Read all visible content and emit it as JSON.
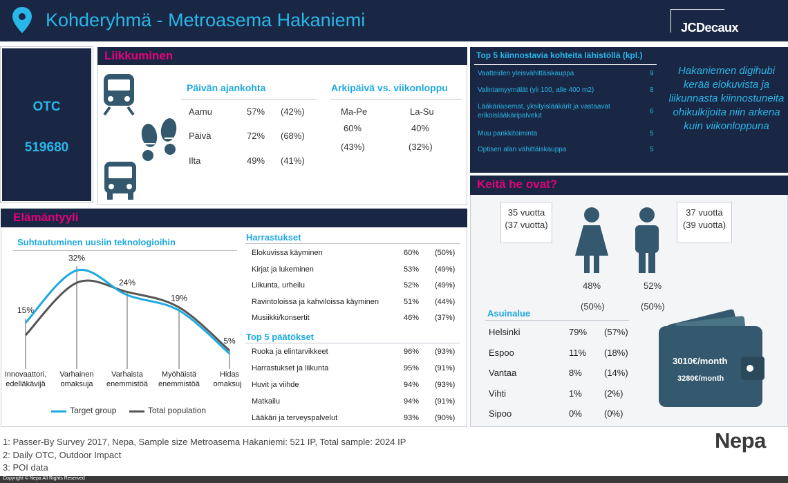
{
  "header": {
    "title": "Kohderyhmä - Metroasema Hakaniemi",
    "brand": "JCDecaux"
  },
  "otc": {
    "label": "OTC",
    "value": "519680"
  },
  "liikkuminen": {
    "title": "Liikkuminen",
    "time_heading": "Päivän ajankohta",
    "time_rows": [
      {
        "label": "Aamu",
        "pct": "57%",
        "ref": "(42%)"
      },
      {
        "label": "Päivä",
        "pct": "72%",
        "ref": "(68%)"
      },
      {
        "label": "Ilta",
        "pct": "49%",
        "ref": "(41%)"
      }
    ],
    "week_heading": "Arkipäivä vs. viikonloppu",
    "week": {
      "weekday_label": "Ma-Pe",
      "weekday_pct": "60%",
      "weekday_ref": "(43%)",
      "weekend_label": "La-Su",
      "weekend_pct": "40%",
      "weekend_ref": "(32%)"
    }
  },
  "poi": {
    "title": "Top 5 kiinnostavia kohteita lähistöllä (kpl.)",
    "items": [
      {
        "label": "Vaatteiden yleisvähittäiskauppa",
        "count": "9"
      },
      {
        "label": "Valintamyymälät (yli 100, alle 400 m2)",
        "count": "8"
      },
      {
        "label": "Lääkäriasemat, yksityislääkärit ja vastaavat",
        "label2": "erikoislääkäripalvelut",
        "count": "6"
      },
      {
        "label": "Muu pankkitoiminta",
        "count": "5"
      },
      {
        "label": "Optisen alan vähittäiskauppa",
        "count": "5"
      }
    ],
    "quote": "Hakaniemen digihubi kerää elokuvista ja liikunnasta kiinnostuneita ohikulkijoita niin arkena kuin viikonloppuna"
  },
  "lifestyle": {
    "title": "Elämäntyyli",
    "chart_title": "Suhtautuminen uusiin teknologioihin",
    "legend_target": "Target group",
    "legend_total": "Total population",
    "hobbies_heading": "Harrastukset",
    "hobbies": [
      {
        "label": "Elokuvissa käyminen",
        "pct": "60%",
        "ref": "(50%)"
      },
      {
        "label": "Kirjat ja lukeminen",
        "pct": "53%",
        "ref": "(49%)"
      },
      {
        "label": "Liikunta, urheilu",
        "pct": "52%",
        "ref": "(49%)"
      },
      {
        "label": "Ravintoloissa ja kahviloissa käyminen",
        "pct": "51%",
        "ref": "(44%)"
      },
      {
        "label": "Musiikki/konsertit",
        "pct": "46%",
        "ref": "(37%)"
      }
    ],
    "decisions_heading": "Top 5 päätökset",
    "decisions": [
      {
        "label": "Ruoka ja elintarvikkeet",
        "pct": "96%",
        "ref": "(93%)"
      },
      {
        "label": "Harrastukset ja liikunta",
        "pct": "95%",
        "ref": "(91%)"
      },
      {
        "label": "Huvit ja viihde",
        "pct": "94%",
        "ref": "(93%)"
      },
      {
        "label": "Matkailu",
        "pct": "94%",
        "ref": "(91%)"
      },
      {
        "label": "Lääkäri ja terveyspalvelut",
        "pct": "93%",
        "ref": "(90%)"
      }
    ]
  },
  "chart_data": {
    "type": "line",
    "title": "Suhtautuminen uusiin teknologioihin",
    "categories": [
      "Innovaattori, edelläkävijä",
      "Varhainen omaksuja",
      "Varhaista enemmistöä",
      "Myöhäistä enemmistöä",
      "Hidas omaksuja"
    ],
    "series": [
      {
        "name": "Target group",
        "values": [
          15,
          32,
          24,
          19,
          5
        ],
        "labels": [
          "15%",
          "32%",
          "24%",
          "19%",
          "5%"
        ],
        "color": "#1fa9e1"
      },
      {
        "name": "Total population",
        "values": [
          11,
          28,
          25,
          20,
          6
        ],
        "color": "#555555"
      }
    ],
    "ylim": [
      0,
      35
    ],
    "grid": "vertical"
  },
  "keita": {
    "title": "Keitä he ovat?",
    "female_age": "35 vuotta",
    "female_age_ref": "(37 vuotta)",
    "male_age": "37 vuotta",
    "male_age_ref": "(39 vuotta)",
    "female_pct": "48%",
    "female_ref": "(50%)",
    "male_pct": "52%",
    "male_ref": "(50%)",
    "area_heading": "Asuinalue",
    "areas": [
      {
        "label": "Helsinki",
        "pct": "79%",
        "ref": "(57%)"
      },
      {
        "label": "Espoo",
        "pct": "11%",
        "ref": "(18%)"
      },
      {
        "label": "Vantaa",
        "pct": "8%",
        "ref": "(14%)"
      },
      {
        "label": "Vihti",
        "pct": "1%",
        "ref": "(2%)"
      },
      {
        "label": "Sipoo",
        "pct": "0%",
        "ref": "(0%)"
      }
    ],
    "income": "3010€/month",
    "income_ref": "3280€/month"
  },
  "footnotes": {
    "n1": "1: Passer-By Survey 2017, Nepa, Sample size Metroasema Hakaniemi: 521 IP, Total sample: 2024 IP",
    "n2": "2: Daily OTC, Outdoor Impact",
    "n3": "3: POI data",
    "brand": "Nepa",
    "copyright": "Copyright © Nepa All Rights Reserved"
  },
  "colors": {
    "navy": "#1a2744",
    "accent": "#1fa9e1",
    "pink": "#e6007e",
    "icon": "#34596e"
  }
}
